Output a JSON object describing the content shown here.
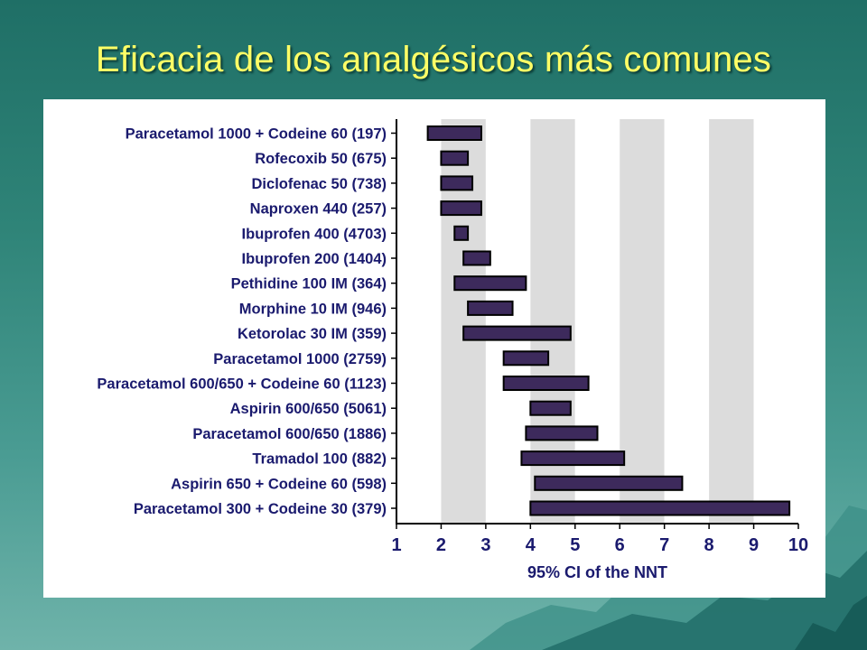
{
  "slide": {
    "title": "Eficacia de los analgésicos más comunes"
  },
  "colors": {
    "background": "#2f8478",
    "title": "#ffff66",
    "bar_fill": "#3d2a5c",
    "bar_stroke": "#000000",
    "plot_band": "#dcdcdc",
    "label_text": "#1a1a6e"
  },
  "chart_data": {
    "type": "bar",
    "orientation": "horizontal-range",
    "title": "",
    "xlabel": "95% CI of the NNT",
    "ylabel": "",
    "xlim": [
      1,
      10
    ],
    "xticks": [
      "1",
      "2",
      "3",
      "4",
      "5",
      "6",
      "7",
      "8",
      "9",
      "10"
    ],
    "grid": true,
    "categories": [
      "Paracetamol 1000 + Codeine 60 (197)",
      "Rofecoxib 50 (675)",
      "Diclofenac 50 (738)",
      "Naproxen 440 (257)",
      "Ibuprofen 400 (4703)",
      "Ibuprofen 200 (1404)",
      "Pethidine 100 IM (364)",
      "Morphine 10 IM (946)",
      "Ketorolac 30 IM (359)",
      "Paracetamol 1000 (2759)",
      "Paracetamol 600/650 + Codeine 60 (1123)",
      "Aspirin 600/650 (5061)",
      "Paracetamol 600/650 (1886)",
      "Tramadol 100 (882)",
      "Aspirin  650 + Codeine 60 (598)",
      "Paracetamol 300 + Codeine 30 (379)"
    ],
    "ranges": [
      [
        1.7,
        2.9
      ],
      [
        2.0,
        2.6
      ],
      [
        2.0,
        2.7
      ],
      [
        2.0,
        2.9
      ],
      [
        2.3,
        2.6
      ],
      [
        2.5,
        3.1
      ],
      [
        2.3,
        3.9
      ],
      [
        2.6,
        3.6
      ],
      [
        2.5,
        4.9
      ],
      [
        3.4,
        4.4
      ],
      [
        3.4,
        5.3
      ],
      [
        4.0,
        4.9
      ],
      [
        3.9,
        5.5
      ],
      [
        3.8,
        6.1
      ],
      [
        4.1,
        7.4
      ],
      [
        4.0,
        9.8
      ]
    ]
  }
}
